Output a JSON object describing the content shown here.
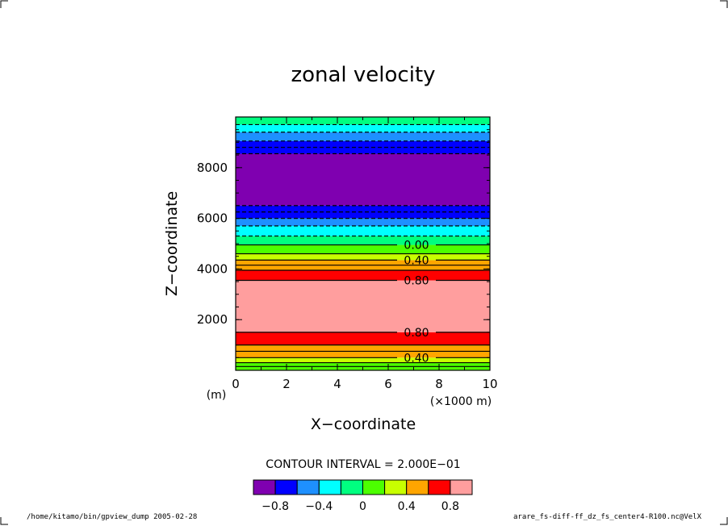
{
  "chart_data": {
    "type": "heatmap",
    "title": "zonal velocity",
    "xlabel": "X−coordinate",
    "ylabel": "Z−coordinate",
    "x_unit": "(×1000 m)",
    "y_unit": "(m)",
    "xlim": [
      0,
      10
    ],
    "ylim": [
      0,
      10000
    ],
    "x_ticks": [
      "0",
      "2",
      "4",
      "6",
      "8",
      "10"
    ],
    "y_ticks": [
      "2000",
      "4000",
      "6000",
      "8000"
    ],
    "contour_interval_text": "CONTOUR INTERVAL = 2.000E−01",
    "bands": [
      {
        "z0": 0,
        "z1": 150,
        "color": "#4cff00"
      },
      {
        "z0": 150,
        "z1": 300,
        "color": "#4cff00"
      },
      {
        "z0": 300,
        "z1": 500,
        "color": "#c8ff00"
      },
      {
        "z0": 500,
        "z1": 1000,
        "color": "#ffa500"
      },
      {
        "z0": 1000,
        "z1": 1500,
        "color": "#ff0000"
      },
      {
        "z0": 1500,
        "z1": 3550,
        "color": "#ff9e9e"
      },
      {
        "z0": 3550,
        "z1": 3950,
        "color": "#ff0000"
      },
      {
        "z0": 3950,
        "z1": 4350,
        "color": "#ffa500"
      },
      {
        "z0": 4350,
        "z1": 4600,
        "color": "#c8ff00"
      },
      {
        "z0": 4600,
        "z1": 4950,
        "color": "#4cff00"
      },
      {
        "z0": 4950,
        "z1": 5300,
        "color": "#00ff80"
      },
      {
        "z0": 5300,
        "z1": 5700,
        "color": "#00ffff"
      },
      {
        "z0": 5700,
        "z1": 6000,
        "color": "#1e90ff"
      },
      {
        "z0": 6000,
        "z1": 6500,
        "color": "#0000ff"
      },
      {
        "z0": 6500,
        "z1": 8550,
        "color": "#7f00b0"
      },
      {
        "z0": 8550,
        "z1": 9050,
        "color": "#0000ff"
      },
      {
        "z0": 9050,
        "z1": 9400,
        "color": "#1e90ff"
      },
      {
        "z0": 9400,
        "z1": 9700,
        "color": "#00ffff"
      },
      {
        "z0": 9700,
        "z1": 10000,
        "color": "#00ff80"
      }
    ],
    "contours": [
      {
        "z": 150,
        "style": "solid"
      },
      {
        "z": 300,
        "style": "solid"
      },
      {
        "z": 500,
        "style": "solid",
        "label": "0.40"
      },
      {
        "z": 750,
        "style": "solid"
      },
      {
        "z": 1000,
        "style": "solid"
      },
      {
        "z": 1500,
        "style": "solid",
        "label": "0.80"
      },
      {
        "z": 3550,
        "style": "solid",
        "label": "0.80"
      },
      {
        "z": 3950,
        "style": "solid"
      },
      {
        "z": 4150,
        "style": "solid"
      },
      {
        "z": 4350,
        "style": "solid",
        "label": "0.40"
      },
      {
        "z": 4600,
        "style": "solid"
      },
      {
        "z": 4950,
        "style": "solid",
        "label": "0.00"
      },
      {
        "z": 5300,
        "style": "dashed"
      },
      {
        "z": 5700,
        "style": "dashed"
      },
      {
        "z": 6000,
        "style": "dashed"
      },
      {
        "z": 6250,
        "style": "dashed"
      },
      {
        "z": 6500,
        "style": "dashed"
      },
      {
        "z": 8550,
        "style": "dashed"
      },
      {
        "z": 8800,
        "style": "dashed"
      },
      {
        "z": 9050,
        "style": "dashed"
      },
      {
        "z": 9400,
        "style": "dashed"
      },
      {
        "z": 9700,
        "style": "dashed"
      }
    ],
    "colorbar": {
      "colors": [
        "#7f00b0",
        "#0000ff",
        "#1e90ff",
        "#00ffff",
        "#00ff80",
        "#4cff00",
        "#c8ff00",
        "#ffa500",
        "#ff0000",
        "#ff9e9e"
      ],
      "tick_labels": [
        "−0.8",
        "−0.4",
        "0",
        "0.4",
        "0.8"
      ]
    }
  },
  "footer": {
    "left": "/home/kitamo/bin/gpview_dump  2005-02-28",
    "right": "arare_fs-diff-ff_dz_fs_center4-R100.nc@VelX"
  }
}
